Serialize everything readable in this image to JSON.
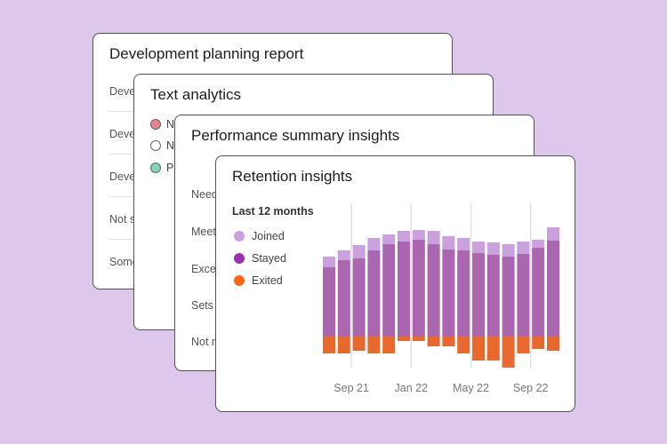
{
  "cards": {
    "development": {
      "title": "Development planning report",
      "rows": [
        "Deve",
        "Deve",
        "Deve",
        "Not s",
        "Some"
      ]
    },
    "text_analytics": {
      "title": "Text analytics",
      "items": [
        {
          "label": "N",
          "color": "#e8848f"
        },
        {
          "label": "N",
          "color": "#ffffff"
        },
        {
          "label": "Po",
          "color": "#7fd6bb"
        }
      ]
    },
    "performance": {
      "title": "Performance summary insights",
      "rows": [
        "Need",
        "Meet",
        "Exce",
        "Sets",
        "Not r"
      ]
    },
    "retention": {
      "title": "Retention insights",
      "period": "Last 12 months",
      "legend": [
        {
          "label": "Joined",
          "color": "#c9a2dd"
        },
        {
          "label": "Stayed",
          "color": "#9b32b0"
        },
        {
          "label": "Exited",
          "color": "#ff6516"
        }
      ]
    }
  },
  "colors": {
    "background": "#ddc7ea",
    "joined": "#c9a2dd",
    "stayed": "#ab66b0",
    "exited": "#e8692e",
    "grid": "#dddddd"
  },
  "chart_data": {
    "type": "bar",
    "stacked": true,
    "x_tick_labels": [
      "Sep 21",
      "Jan 22",
      "May 22",
      "Sep 22"
    ],
    "series": [
      {
        "name": "Stayed",
        "values": [
          78,
          86,
          88,
          97,
          104,
          107,
          109,
          104,
          98,
          97,
          94,
          92,
          90,
          93,
          100,
          108
        ]
      },
      {
        "name": "Joined",
        "values": [
          12,
          11,
          15,
          14,
          11,
          12,
          11,
          15,
          15,
          14,
          13,
          14,
          14,
          14,
          9,
          15
        ]
      },
      {
        "name": "Exited",
        "values": [
          -19,
          -19,
          -16,
          -19,
          -19,
          -5,
          -5,
          -11,
          -11,
          -19,
          -27,
          -27,
          -35,
          -19,
          -14,
          -16
        ]
      }
    ],
    "grid": "vertical"
  }
}
